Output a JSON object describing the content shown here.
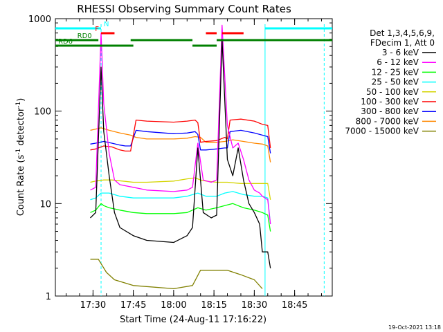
{
  "chart_data": {
    "type": "line",
    "title": "RHESSI Observing Summary Count Rates",
    "xlabel": "Start Time (24-Aug-11 17:16:22)",
    "ylabel": "Count Rate (s⁻¹ detector⁻¹)",
    "ylabel_parts": {
      "main": "Count Rate (s",
      "exp1": "-1",
      "mid": " detector",
      "exp2": "-1",
      "close": ")"
    },
    "y_scale": "log",
    "ylim": [
      1,
      1000
    ],
    "xlim": [
      "17:16",
      "18:59"
    ],
    "x_ticks": [
      "17:30",
      "17:45",
      "18:00",
      "18:15",
      "18:30",
      "18:45"
    ],
    "y_ticks": [
      "1",
      "10",
      "100",
      "1000"
    ],
    "legend_placement": "top-right",
    "legend_header": [
      "Det 1,3,4,5,6,9,",
      "FDecim 1, Att 0"
    ],
    "footer_timestamp": "19-Oct-2021 13:18",
    "series": [
      {
        "name": "3 - 6 keV",
        "color": "#000000",
        "x": [
          "17:29",
          "17:31",
          "17:33",
          "17:34",
          "17:36",
          "17:38",
          "17:40",
          "17:45",
          "17:50",
          "18:00",
          "18:05",
          "18:07",
          "18:09",
          "18:11",
          "18:14",
          "18:16",
          "18:18",
          "18:20",
          "18:22",
          "18:24",
          "18:26",
          "18:28",
          "18:30",
          "18:32",
          "18:33",
          "18:35",
          "18:36"
        ],
        "y": [
          7,
          8,
          300,
          60,
          20,
          8,
          5.5,
          4.5,
          4,
          3.8,
          4.5,
          5.5,
          40,
          8,
          7,
          7.5,
          600,
          30,
          20,
          40,
          18,
          10,
          8,
          6,
          3,
          3,
          2
        ]
      },
      {
        "name": "6 - 12 keV",
        "color": "#ff00ff",
        "x": [
          "17:29",
          "17:31",
          "17:33",
          "17:34",
          "17:36",
          "17:38",
          "17:40",
          "17:45",
          "17:50",
          "18:00",
          "18:05",
          "18:07",
          "18:09",
          "18:11",
          "18:14",
          "18:16",
          "18:18",
          "18:20",
          "18:22",
          "18:24",
          "18:26",
          "18:28",
          "18:30",
          "18:32",
          "18:33",
          "18:35",
          "18:36"
        ],
        "y": [
          14,
          15,
          700,
          120,
          35,
          18,
          16,
          15,
          14,
          13.5,
          14,
          15,
          45,
          18,
          17,
          18,
          850,
          70,
          40,
          45,
          30,
          18,
          14,
          13,
          12,
          11,
          6
        ]
      },
      {
        "name": "12 - 25 keV",
        "color": "#00ff00",
        "x": [
          "17:29",
          "17:31",
          "17:33",
          "17:34",
          "17:36",
          "17:40",
          "17:45",
          "17:50",
          "18:00",
          "18:05",
          "18:07",
          "18:09",
          "18:12",
          "18:16",
          "18:19",
          "18:22",
          "18:26",
          "18:30",
          "18:33",
          "18:35",
          "18:36"
        ],
        "y": [
          8,
          8.5,
          10,
          9.5,
          9,
          8.5,
          8,
          7.8,
          7.8,
          8,
          8.5,
          9,
          8.5,
          9,
          9.5,
          10,
          9,
          8.5,
          8,
          7.5,
          5
        ]
      },
      {
        "name": "25 - 50 keV",
        "color": "#00ffff",
        "x": [
          "17:29",
          "17:31",
          "17:33",
          "17:36",
          "17:40",
          "17:45",
          "17:50",
          "18:00",
          "18:05",
          "18:07",
          "18:09",
          "18:12",
          "18:16",
          "18:19",
          "18:22",
          "18:26",
          "18:30",
          "18:33",
          "18:35",
          "18:36"
        ],
        "y": [
          11,
          11.5,
          13,
          13,
          12,
          11.5,
          11.5,
          11.5,
          12,
          12.5,
          13,
          12,
          12,
          13,
          13.5,
          12.5,
          12,
          12,
          11.5,
          6
        ]
      },
      {
        "name": "50 - 100 keV",
        "color": "#d4d400",
        "x": [
          "17:29",
          "17:31",
          "17:34",
          "17:37",
          "17:41",
          "17:45",
          "17:50",
          "18:00",
          "18:05",
          "18:08",
          "18:10",
          "18:12",
          "18:16",
          "18:20",
          "18:25",
          "18:30",
          "18:33",
          "18:35",
          "18:36"
        ],
        "y": [
          17,
          17.5,
          18,
          18,
          17.5,
          17,
          17,
          17.5,
          18.5,
          19,
          18,
          17.5,
          17,
          17,
          16.5,
          16.5,
          16.5,
          16.5,
          11
        ]
      },
      {
        "name": "100 - 300 keV",
        "color": "#ff0000",
        "x": [
          "17:29",
          "17:31",
          "17:34",
          "17:37",
          "17:40",
          "17:42",
          "17:44",
          "17:46",
          "17:50",
          "18:00",
          "18:05",
          "18:08",
          "18:09",
          "18:10",
          "18:12",
          "18:16",
          "18:19",
          "18:20",
          "18:21",
          "18:25",
          "18:30",
          "18:33",
          "18:35",
          "18:36"
        ],
        "y": [
          38,
          39,
          42,
          41,
          38,
          37,
          37,
          80,
          78,
          76,
          78,
          80,
          75,
          46,
          47,
          48,
          52,
          50,
          80,
          82,
          78,
          72,
          70,
          40
        ]
      },
      {
        "name": "300 - 800 keV",
        "color": "#0000ff",
        "x": [
          "17:29",
          "17:31",
          "17:34",
          "17:37",
          "17:40",
          "17:42",
          "17:44",
          "17:46",
          "17:50",
          "18:00",
          "18:05",
          "18:08",
          "18:09",
          "18:10",
          "18:12",
          "18:16",
          "18:19",
          "18:20",
          "18:21",
          "18:25",
          "18:30",
          "18:33",
          "18:35",
          "18:36"
        ],
        "y": [
          44,
          45,
          47,
          45,
          43,
          42,
          42,
          62,
          60,
          57,
          58,
          60,
          56,
          38,
          38,
          39,
          40,
          40,
          60,
          62,
          58,
          55,
          53,
          35
        ]
      },
      {
        "name": "800 - 7000 keV",
        "color": "#ff8800",
        "x": [
          "17:29",
          "17:31",
          "17:33",
          "17:36",
          "17:40",
          "17:44",
          "17:46",
          "17:50",
          "18:00",
          "18:05",
          "18:08",
          "18:10",
          "18:12",
          "18:16",
          "18:19",
          "18:22",
          "18:26",
          "18:30",
          "18:33",
          "18:35",
          "18:36"
        ],
        "y": [
          62,
          64,
          66,
          62,
          58,
          55,
          52,
          50,
          50,
          51,
          53,
          52,
          46,
          46,
          47,
          49,
          47,
          45,
          44,
          42,
          28
        ]
      },
      {
        "name": "7000 - 15000 keV",
        "color": "#808000",
        "x": [
          "17:29",
          "17:32",
          "17:35",
          "17:38",
          "17:45",
          "18:00",
          "18:07",
          "18:10",
          "18:15",
          "18:20",
          "18:25",
          "18:30",
          "18:33"
        ],
        "y": [
          2.5,
          2.5,
          1.8,
          1.5,
          1.3,
          1.2,
          1.3,
          1.9,
          1.9,
          1.9,
          1.7,
          1.5,
          1.2
        ]
      }
    ],
    "flags": [
      {
        "label": "N",
        "color": "#00ffff",
        "level": "top",
        "segments": [
          [
            "17:16",
            "17:33"
          ],
          [
            "18:34",
            "18:59"
          ]
        ]
      },
      {
        "label": "F",
        "color": "#ff0000",
        "level": "upper",
        "segments": [
          [
            "17:33",
            "17:38"
          ],
          [
            "18:12",
            "18:16"
          ],
          [
            "18:18",
            "18:26"
          ]
        ]
      },
      {
        "label": "RD0",
        "color": "#008000",
        "level": "middle",
        "segments": [
          [
            "17:16",
            "17:32"
          ],
          [
            "17:44",
            "18:07"
          ],
          [
            "18:16",
            "18:59"
          ]
        ]
      },
      {
        "label": "RD6",
        "color": "#008000",
        "level": "lower",
        "segments": [
          [
            "17:16",
            "17:45"
          ],
          [
            "18:07",
            "18:16"
          ]
        ]
      }
    ],
    "saa_lines": [
      {
        "color": "#00ffff",
        "style": "dashed",
        "time": "17:33"
      },
      {
        "color": "#00ffff",
        "style": "solid",
        "time": "18:34"
      },
      {
        "color": "#00ffff",
        "style": "dashed",
        "time": "18:56"
      }
    ]
  }
}
